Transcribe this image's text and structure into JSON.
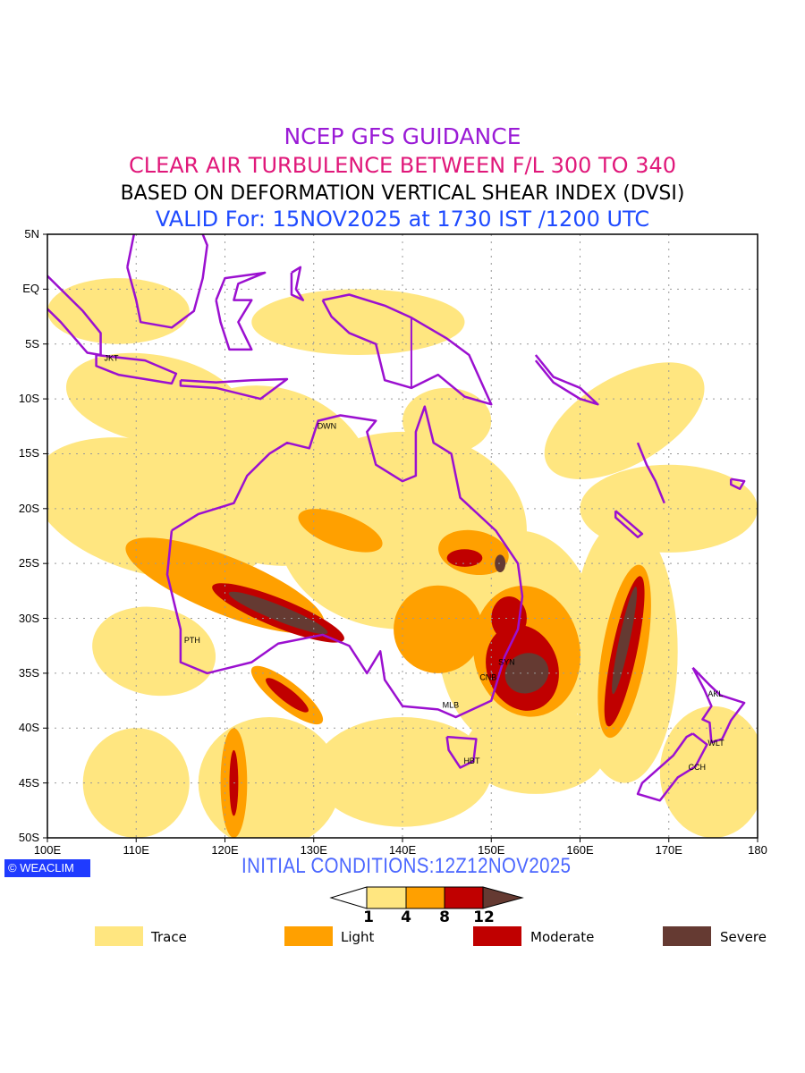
{
  "titles": {
    "line1": "NCEP GFS GUIDANCE",
    "line2": "CLEAR AIR TURBULENCE BETWEEN F/L 300 TO 340",
    "line3": "BASED ON DEFORMATION VERTICAL SHEAR INDEX (DVSI)",
    "line4": "VALID For: 15NOV2025 at 1730 IST /1200 UTC"
  },
  "axes": {
    "lat_ticks": [
      "5N",
      "EQ",
      "5S",
      "10S",
      "15S",
      "20S",
      "25S",
      "30S",
      "35S",
      "40S",
      "45S",
      "50S"
    ],
    "lon_ticks": [
      "100E",
      "110E",
      "120E",
      "130E",
      "140E",
      "150E",
      "160E",
      "170E",
      "180"
    ]
  },
  "cities": [
    "JKT",
    "DWN",
    "PTH",
    "MLB",
    "HBT",
    "CNB",
    "SYN",
    "AKL",
    "WLT",
    "CCH"
  ],
  "logo": {
    "symbol": "©",
    "text": "WEACLIM"
  },
  "initial_conditions": "INITIAL CONDITIONS:12Z12NOV2025",
  "colorbar": {
    "labels": [
      "1",
      "4",
      "8",
      "12"
    ]
  },
  "legend": [
    {
      "label": "Trace",
      "color": "#ffe680"
    },
    {
      "label": "Light",
      "color": "#ffa000"
    },
    {
      "label": "Moderate",
      "color": "#c00000"
    },
    {
      "label": "Severe",
      "color": "#653a32"
    }
  ],
  "colors": {
    "coast": "#9b10d0",
    "trace": "#ffe680",
    "light": "#ffa000",
    "moderate": "#c00000",
    "severe": "#653a32"
  }
}
